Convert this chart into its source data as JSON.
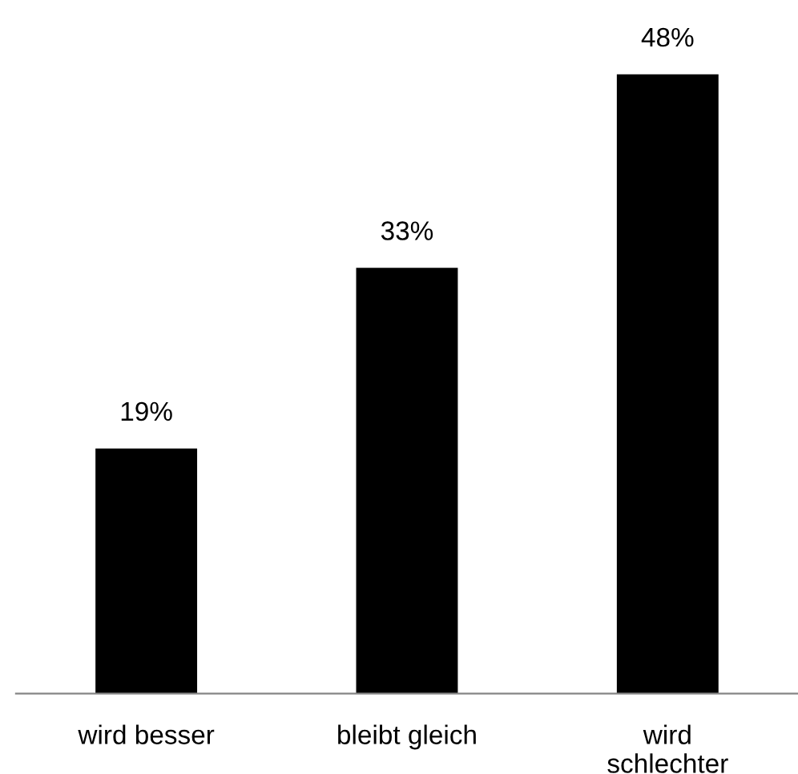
{
  "chart_data": {
    "type": "bar",
    "categories": [
      "wird besser",
      "bleibt gleich",
      "wird\nschlechter"
    ],
    "values": [
      19,
      33,
      48
    ],
    "color": "#000000",
    "value_labels": [
      "19%",
      "33%",
      "48%"
    ],
    "grid": false,
    "legend": false
  }
}
